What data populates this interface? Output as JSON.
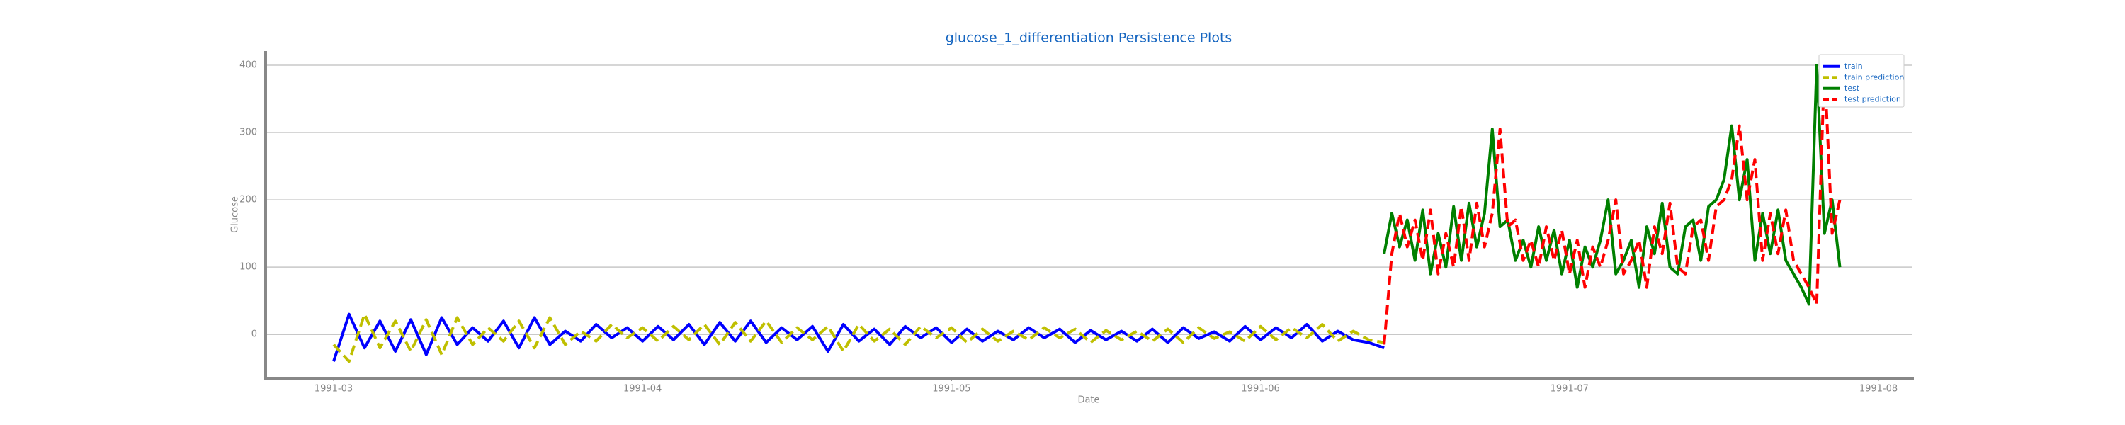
{
  "chart_data": {
    "type": "line",
    "title": "glucose_1_differentiation Persistence Plots",
    "x_label": "Date",
    "y_label": "Glucose",
    "xlim": [
      2.78,
      8.11
    ],
    "xticks": [
      {
        "value": 3,
        "label": "1991-03"
      },
      {
        "value": 4,
        "label": "1991-04"
      },
      {
        "value": 5,
        "label": "1991-05"
      },
      {
        "value": 6,
        "label": "1991-06"
      },
      {
        "value": 7,
        "label": "1991-07"
      },
      {
        "value": 8,
        "label": "1991-08"
      }
    ],
    "ylim": [
      -65,
      420
    ],
    "yticks": [
      0,
      100,
      200,
      300,
      400
    ],
    "grid": true,
    "legend": "upper right",
    "series": [
      {
        "name": "train",
        "color": "#0000ff",
        "linestyle": "solid",
        "x": [
          3.0,
          3.05,
          3.1,
          3.15,
          3.2,
          3.25,
          3.3,
          3.35,
          3.4,
          3.45,
          3.5,
          3.55,
          3.6,
          3.65,
          3.7,
          3.75,
          3.8,
          3.85,
          3.9,
          3.95,
          4.0,
          4.05,
          4.1,
          4.15,
          4.2,
          4.25,
          4.3,
          4.35,
          4.4,
          4.45,
          4.5,
          4.55,
          4.6,
          4.65,
          4.7,
          4.75,
          4.8,
          4.85,
          4.9,
          4.95,
          5.0,
          5.05,
          5.1,
          5.15,
          5.2,
          5.25,
          5.3,
          5.35,
          5.4,
          5.45,
          5.5,
          5.55,
          5.6,
          5.65,
          5.7,
          5.75,
          5.8,
          5.85,
          5.9,
          5.95,
          6.0,
          6.05,
          6.1,
          6.15,
          6.2,
          6.25,
          6.3,
          6.35,
          6.4
        ],
        "values": [
          -40,
          30,
          -20,
          20,
          -25,
          22,
          -30,
          25,
          -15,
          10,
          -10,
          20,
          -20,
          25,
          -15,
          5,
          -10,
          15,
          -5,
          10,
          -10,
          12,
          -8,
          15,
          -15,
          18,
          -10,
          20,
          -12,
          10,
          -8,
          12,
          -25,
          15,
          -10,
          8,
          -15,
          12,
          -5,
          10,
          -12,
          8,
          -10,
          5,
          -8,
          10,
          -5,
          8,
          -12,
          6,
          -8,
          5,
          -10,
          8,
          -12,
          10,
          -6,
          4,
          -10,
          12,
          -8,
          10,
          -5,
          15,
          -10,
          5,
          -8,
          -12,
          -20
        ]
      },
      {
        "name": "train prediction",
        "color": "#bfbf00",
        "linestyle": "dashed",
        "x": [
          3.0,
          3.05,
          3.1,
          3.15,
          3.2,
          3.25,
          3.3,
          3.35,
          3.4,
          3.45,
          3.5,
          3.55,
          3.6,
          3.65,
          3.7,
          3.75,
          3.8,
          3.85,
          3.9,
          3.95,
          4.0,
          4.05,
          4.1,
          4.15,
          4.2,
          4.25,
          4.3,
          4.35,
          4.4,
          4.45,
          4.5,
          4.55,
          4.6,
          4.65,
          4.7,
          4.75,
          4.8,
          4.85,
          4.9,
          4.95,
          5.0,
          5.05,
          5.1,
          5.15,
          5.2,
          5.25,
          5.3,
          5.35,
          5.4,
          5.45,
          5.5,
          5.55,
          5.6,
          5.65,
          5.7,
          5.75,
          5.8,
          5.85,
          5.9,
          5.95,
          6.0,
          6.05,
          6.1,
          6.15,
          6.2,
          6.25,
          6.3,
          6.35,
          6.4
        ],
        "values": [
          -15,
          -40,
          30,
          -20,
          20,
          -25,
          22,
          -30,
          25,
          -15,
          10,
          -10,
          20,
          -20,
          25,
          -15,
          5,
          -10,
          15,
          -5,
          10,
          -10,
          12,
          -8,
          15,
          -15,
          18,
          -10,
          20,
          -12,
          10,
          -8,
          12,
          -25,
          15,
          -10,
          8,
          -15,
          12,
          -5,
          10,
          -12,
          8,
          -10,
          5,
          -8,
          10,
          -5,
          8,
          -12,
          6,
          -8,
          5,
          -10,
          8,
          -12,
          10,
          -6,
          4,
          -10,
          12,
          -8,
          10,
          -5,
          15,
          -10,
          5,
          -8,
          -12
        ]
      },
      {
        "name": "test",
        "color": "#008000",
        "linestyle": "solid",
        "x": [
          6.4,
          6.425,
          6.45,
          6.475,
          6.5,
          6.525,
          6.55,
          6.575,
          6.6,
          6.625,
          6.65,
          6.675,
          6.7,
          6.725,
          6.75,
          6.775,
          6.8,
          6.825,
          6.85,
          6.875,
          6.9,
          6.925,
          6.95,
          6.975,
          7.0,
          7.025,
          7.05,
          7.075,
          7.1,
          7.125,
          7.15,
          7.175,
          7.2,
          7.225,
          7.25,
          7.275,
          7.3,
          7.325,
          7.35,
          7.375,
          7.4,
          7.425,
          7.45,
          7.475,
          7.5,
          7.525,
          7.55,
          7.575,
          7.6,
          7.625,
          7.65,
          7.675,
          7.7,
          7.725,
          7.75,
          7.775,
          7.8,
          7.825,
          7.85,
          7.875
        ],
        "values": [
          120,
          180,
          130,
          170,
          110,
          185,
          90,
          150,
          100,
          190,
          110,
          195,
          130,
          180,
          305,
          160,
          170,
          110,
          140,
          100,
          160,
          110,
          155,
          90,
          140,
          70,
          130,
          100,
          140,
          200,
          90,
          110,
          140,
          70,
          160,
          120,
          195,
          100,
          90,
          160,
          170,
          110,
          190,
          200,
          230,
          310,
          200,
          260,
          110,
          180,
          120,
          185,
          110,
          90,
          70,
          45,
          400,
          150,
          200,
          100
        ]
      },
      {
        "name": "test prediction",
        "color": "#ff0000",
        "linestyle": "dashed",
        "x": [
          6.4,
          6.425,
          6.45,
          6.475,
          6.5,
          6.525,
          6.55,
          6.575,
          6.6,
          6.625,
          6.65,
          6.675,
          6.7,
          6.725,
          6.75,
          6.775,
          6.8,
          6.825,
          6.85,
          6.875,
          6.9,
          6.925,
          6.95,
          6.975,
          7.0,
          7.025,
          7.05,
          7.075,
          7.1,
          7.125,
          7.15,
          7.175,
          7.2,
          7.225,
          7.25,
          7.275,
          7.3,
          7.325,
          7.35,
          7.375,
          7.4,
          7.425,
          7.45,
          7.475,
          7.5,
          7.525,
          7.55,
          7.575,
          7.6,
          7.625,
          7.65,
          7.675,
          7.7,
          7.725,
          7.75,
          7.775,
          7.8,
          7.825,
          7.85,
          7.875
        ],
        "values": [
          -15,
          120,
          180,
          130,
          170,
          110,
          185,
          90,
          150,
          100,
          190,
          110,
          195,
          130,
          180,
          305,
          160,
          170,
          110,
          140,
          100,
          160,
          110,
          155,
          90,
          140,
          70,
          130,
          100,
          140,
          200,
          90,
          110,
          140,
          70,
          160,
          120,
          195,
          100,
          90,
          160,
          170,
          110,
          190,
          200,
          230,
          310,
          200,
          260,
          110,
          180,
          120,
          185,
          110,
          90,
          70,
          45,
          400,
          150,
          200
        ]
      }
    ]
  }
}
